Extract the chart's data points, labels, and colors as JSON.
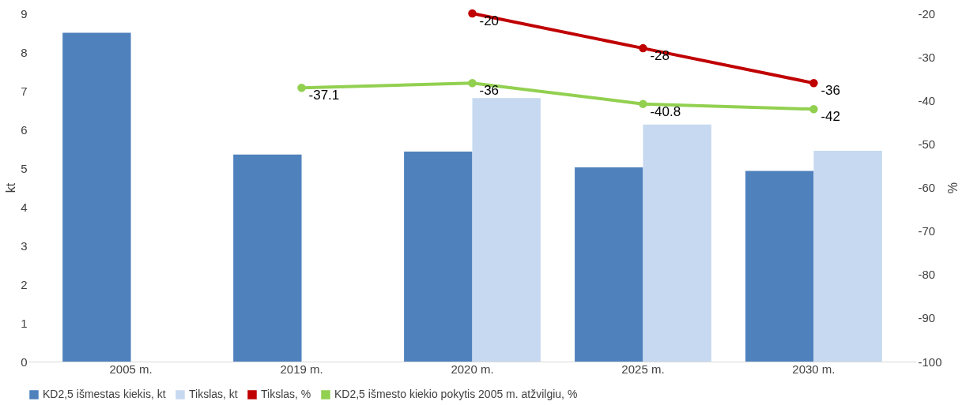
{
  "chart_data": {
    "type": "bar",
    "ylabel": "kt",
    "y2label": "%",
    "categories": [
      "2005 m.",
      "2019 m.",
      "2020 m.",
      "2025 m.",
      "2030 m."
    ],
    "series": [
      {
        "name": "KD2,5 išmestas kiekis, kt",
        "color": "#4f81bd",
        "values": [
          8.5,
          5.35,
          5.43,
          5.02,
          4.93
        ]
      },
      {
        "name": "Tikslas, kt",
        "color": "#c6d9f0",
        "values": [
          null,
          null,
          6.81,
          6.13,
          5.45
        ]
      },
      {
        "name": "Tikslas, %",
        "type": "line",
        "axis": "y2",
        "color": "#c00000",
        "data_labels": true,
        "values": [
          null,
          null,
          -20,
          -28,
          -36
        ]
      },
      {
        "name": "KD2,5 išmesto kiekio pokytis 2005 m. atžvilgiu, %",
        "type": "line",
        "axis": "y2",
        "color": "#92d050",
        "data_labels": true,
        "values": [
          null,
          -37.1,
          -36,
          -40.8,
          -42
        ]
      }
    ],
    "ylim": [
      0,
      9
    ],
    "yticks": [
      0,
      1,
      2,
      3,
      4,
      5,
      6,
      7,
      8,
      9
    ],
    "y2lim": [
      -100,
      -20
    ],
    "y2ticks": [
      -100,
      -90,
      -80,
      -70,
      -60,
      -50,
      -40,
      -30,
      -20
    ],
    "grid": false,
    "legend": "bottom",
    "marker": "circle"
  }
}
